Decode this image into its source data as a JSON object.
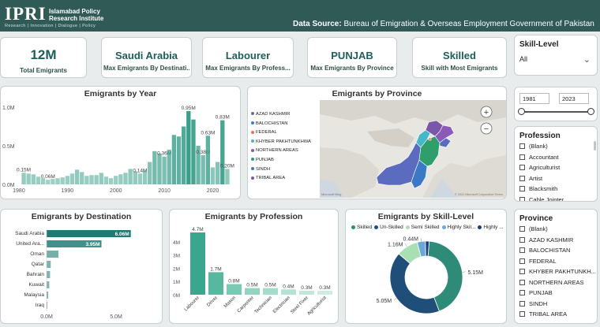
{
  "header": {
    "logo_text": "IPRI",
    "institute_line1": "Islamabad Policy",
    "institute_line2": "Research Institute",
    "tagline": "Research | Innovation | Dialogue | Policy",
    "source_label": "Data Source:",
    "source_text": "Bureau of Emigration & Overseas Employment Government of Pakistan",
    "bg_color": "#2f5a56"
  },
  "more_icon": "ellipsis-icon",
  "kpis": [
    {
      "value": "12M",
      "label": "Total Emigrants"
    },
    {
      "value": "Saudi Arabia",
      "label": "Max Emigrants By Destinati..."
    },
    {
      "value": "Labourer",
      "label": "Max Emigrants By Profess..."
    },
    {
      "value": "PUNJAB",
      "label": "Max Emigrants By Province"
    },
    {
      "value": "Skilled",
      "label": "Skill with Most Emigrants"
    }
  ],
  "skill_slicer": {
    "title": "Skill-Level",
    "selected": "All"
  },
  "year_slicer": {
    "from": "1981",
    "to": "2023",
    "fill": 1.0
  },
  "profession_slicer": {
    "title": "Profession",
    "items": [
      "(Blank)",
      "Accountant",
      "Agriculturist",
      "Artist",
      "Blacksmith",
      "Cable Jointer"
    ]
  },
  "province_slicer": {
    "title": "Province",
    "items": [
      "(Blank)",
      "AZAD KASHMIR",
      "BALOCHISTAN",
      "FEDERAL",
      "KHYBER PAKHTUNKH...",
      "NORTHERN AREAS",
      "PUNJAB",
      "SINDH",
      "TRIBAL AREA"
    ]
  },
  "map": {
    "title": "Emigrants by Province",
    "legend": [
      {
        "label": "AZAD KASHMIR",
        "color": "#5b6bbf"
      },
      {
        "label": "BALOCHISTAN",
        "color": "#2e7fd6"
      },
      {
        "label": "FEDERAL",
        "color": "#e8744f"
      },
      {
        "label": "KHYBER PAKHTUNKHWA",
        "color": "#45b7c9"
      },
      {
        "label": "NORTHERN AREAS",
        "color": "#8a5ab8"
      },
      {
        "label": "PUNJAB",
        "color": "#2e9e6b"
      },
      {
        "label": "SINDH",
        "color": "#3b79c7"
      },
      {
        "label": "TRIBAL AREA",
        "color": "#7b57a8"
      }
    ],
    "attribution_left": "Microsoft Bing",
    "attribution_right": "© 2022 Microsoft Corporation  Terms",
    "zoom_in": "+",
    "zoom_out": "−"
  },
  "chart_data": [
    {
      "id": "by_year",
      "type": "bar",
      "title": "Emigrants by Year",
      "x": [
        1981,
        1982,
        1983,
        1984,
        1985,
        1986,
        1987,
        1988,
        1989,
        1990,
        1991,
        1992,
        1993,
        1994,
        1995,
        1996,
        1997,
        1998,
        1999,
        2000,
        2001,
        2002,
        2003,
        2004,
        2005,
        2006,
        2007,
        2008,
        2009,
        2010,
        2011,
        2012,
        2013,
        2014,
        2015,
        2016,
        2017,
        2018,
        2019,
        2020,
        2021,
        2022,
        2023
      ],
      "values": [
        0.15,
        0.14,
        0.13,
        0.1,
        0.08,
        0.06,
        0.07,
        0.08,
        0.09,
        0.11,
        0.14,
        0.19,
        0.16,
        0.11,
        0.12,
        0.12,
        0.15,
        0.1,
        0.08,
        0.11,
        0.13,
        0.15,
        0.2,
        0.17,
        0.14,
        0.18,
        0.29,
        0.43,
        0.4,
        0.36,
        0.45,
        0.64,
        0.62,
        0.75,
        0.95,
        0.84,
        0.5,
        0.38,
        0.63,
        0.22,
        0.29,
        0.83,
        0.2
      ],
      "labels": {
        "1981": "0.15M",
        "1986": "0.06M",
        "2005": "0.14M",
        "2010": "0.36M",
        "2015": "0.95M",
        "2019": "0.63M",
        "2018": "0.38M",
        "2022": "0.83M",
        "2023": "0.20M"
      },
      "xticks": [
        "1980",
        "1990",
        "2000",
        "2010",
        "2020"
      ],
      "yticks": [
        "0.0M",
        "0.5M",
        "1.0M"
      ],
      "ylim": [
        0,
        1.0
      ],
      "color": "#3a9e8a"
    },
    {
      "id": "by_destination",
      "type": "bar",
      "title": "Emigrants by Destination",
      "categories": [
        "Saudi Arabia",
        "United Ara...",
        "Oman",
        "Qatar",
        "Bahrain",
        "Kuwait",
        "Malaysia",
        "Iraq"
      ],
      "values": [
        6.06,
        3.95,
        0.85,
        0.3,
        0.25,
        0.19,
        0.12,
        0.06
      ],
      "value_labels": [
        "6.06M",
        "3.95M",
        "",
        "",
        "",
        "",
        "",
        ""
      ],
      "xticks": [
        "0.0M",
        "5.0M"
      ],
      "xlim": [
        0,
        7.5
      ],
      "color": "#1f7a73"
    },
    {
      "id": "by_profession",
      "type": "bar",
      "title": "Emigrants by Profession",
      "categories": [
        "Labourer",
        "Driver",
        "Mason",
        "Carpenter",
        "Technician",
        "Electrician",
        "Steel Fixer",
        "Agriculturist"
      ],
      "values": [
        4.7,
        1.7,
        0.8,
        0.5,
        0.5,
        0.4,
        0.3,
        0.3
      ],
      "value_labels": [
        "4.7M",
        "1.7M",
        "0.8M",
        "0.5M",
        "0.5M",
        "0.4M",
        "0.3M",
        "0.3M"
      ],
      "yticks": [
        "0M",
        "1M",
        "2M",
        "3M",
        "4M"
      ],
      "ylim": [
        0,
        5
      ],
      "colors": [
        "#3aa68d",
        "#56b89e",
        "#7ac9b2",
        "#93d5c1",
        "#a4dccb",
        "#b4e2d4",
        "#c2e8dc",
        "#cdece2"
      ]
    },
    {
      "id": "by_skill",
      "type": "pie",
      "title": "Emigrants by Skill-Level",
      "legend": [
        "Skilled",
        "Un-Skilled",
        "Semi Skilled",
        "Highly Skil...",
        "Highly ..."
      ],
      "values": [
        5.15,
        5.05,
        1.16,
        0.44,
        0.2
      ],
      "value_labels": [
        "5.15M",
        "5.05M",
        "1.16M",
        "0.44M",
        ""
      ],
      "colors": [
        "#2e8b78",
        "#1f4e79",
        "#a8e0b4",
        "#6aa8d8",
        "#1d3c7a"
      ]
    }
  ]
}
